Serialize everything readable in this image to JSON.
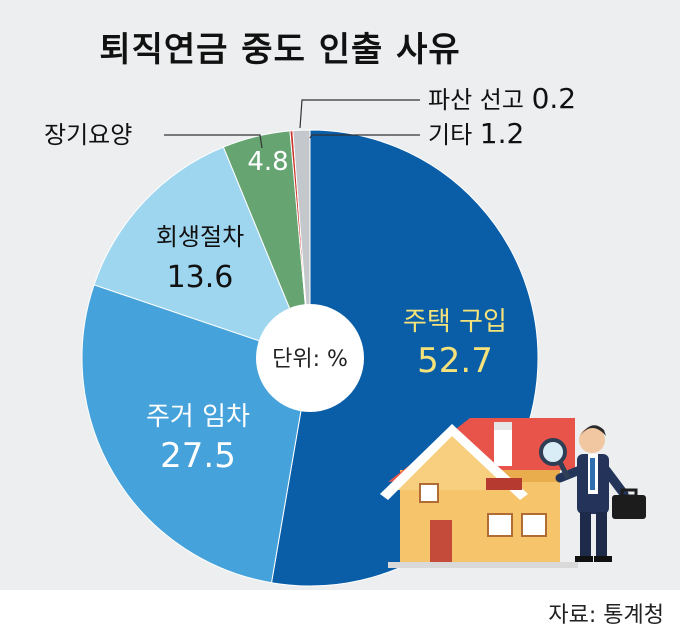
{
  "chart_data": {
    "type": "pie",
    "variant": "donut",
    "title": "퇴직연금 중도 인출 사유",
    "unit_label": "단위: %",
    "source": "자료: 통계청",
    "slices": [
      {
        "label": "주택 구입",
        "value": 52.7,
        "value_text": "52.7",
        "color": "#0a5ea8"
      },
      {
        "label": "주거 임차",
        "value": 27.5,
        "value_text": "27.5",
        "color": "#46a2da"
      },
      {
        "label": "회생절차",
        "value": 13.6,
        "value_text": "13.6",
        "color": "#9ed6ef"
      },
      {
        "label": "장기요양",
        "value": 4.8,
        "value_text": "4.8",
        "color": "#66a472"
      },
      {
        "label": "파산 선고",
        "value": 0.2,
        "value_text": "0.2",
        "color": "#c9362b"
      },
      {
        "label": "기타",
        "value": 1.2,
        "value_text": "1.2",
        "color": "#c4c8cc"
      }
    ]
  }
}
